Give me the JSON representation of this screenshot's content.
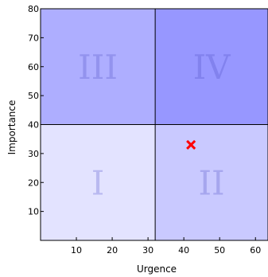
{
  "chart_data": {
    "type": "scatter",
    "xlabel": "Urgence",
    "ylabel": "Importance",
    "xlim": [
      0,
      63.5
    ],
    "ylim": [
      0,
      80
    ],
    "x_ticks": [
      10,
      20,
      30,
      40,
      50,
      60
    ],
    "y_ticks": [
      10,
      20,
      30,
      40,
      50,
      60,
      70,
      80
    ],
    "x_split": 32,
    "y_split": 40,
    "grid": false,
    "quadrants": [
      {
        "label": "I",
        "x": [
          0,
          32
        ],
        "y": [
          0,
          40
        ],
        "fill": "#e3e3ff",
        "text_color": "#b9b9f0"
      },
      {
        "label": "II",
        "x": [
          32,
          63.5
        ],
        "y": [
          0,
          40
        ],
        "fill": "#c9c9ff",
        "text_color": "#a6a6ee"
      },
      {
        "label": "III",
        "x": [
          0,
          32
        ],
        "y": [
          40,
          80
        ],
        "fill": "#aeaeff",
        "text_color": "#9393ee"
      },
      {
        "label": "IV",
        "x": [
          32,
          63.5
        ],
        "y": [
          40,
          80
        ],
        "fill": "#9797ff",
        "text_color": "#8282ee"
      }
    ],
    "points": [
      {
        "x": 42,
        "y": 33,
        "marker": "x",
        "color": "#ff0000"
      }
    ]
  }
}
